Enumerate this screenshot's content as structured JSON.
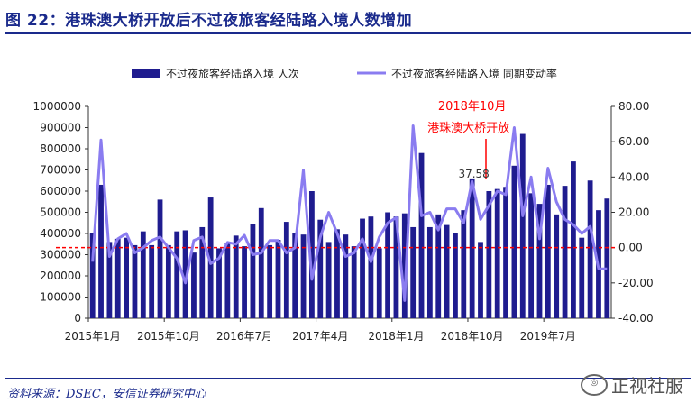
{
  "figure": {
    "title": "图 22：港珠澳大桥开放后不过夜旅客经陆路入境人数增加",
    "source": "资料来源：DSEC，安信证券研究中心",
    "watermark": "正视社服"
  },
  "colors": {
    "bar": "#1f1c8f",
    "line": "#8a7cf0",
    "refline": "#ff0000",
    "title": "#1a2a8c"
  },
  "chart_data": {
    "type": "bar",
    "x_tick_labels": [
      "2015年1月",
      "2015年10月",
      "2016年7月",
      "2017年4月",
      "2018年1月",
      "2018年10月",
      "2019年7月"
    ],
    "x_tick_index": [
      0,
      9,
      18,
      27,
      36,
      45,
      54
    ],
    "legend": {
      "bar": "不过夜旅客经陆路入境 人次",
      "line": "不过夜旅客经陆路入境 同期变动率",
      "position": "top"
    },
    "y_left": {
      "ylim": [
        0,
        1000000
      ],
      "ticks": [
        "0",
        "100000",
        "200000",
        "300000",
        "400000",
        "500000",
        "600000",
        "700000",
        "800000",
        "900000",
        "1000000"
      ]
    },
    "y_right": {
      "ylim": [
        -40,
        80
      ],
      "ticks": [
        "-40.00",
        "-20.00",
        "0.00",
        "20.00",
        "40.00",
        "60.00",
        "80.00"
      ]
    },
    "series": [
      {
        "name": "不过夜旅客经陆路入境 人次",
        "kind": "bar",
        "values": [
          400000,
          630000,
          360000,
          375000,
          380000,
          345000,
          410000,
          345000,
          560000,
          345000,
          410000,
          415000,
          310000,
          430000,
          570000,
          330000,
          355000,
          390000,
          340000,
          445000,
          520000,
          345000,
          370000,
          455000,
          400000,
          395000,
          600000,
          465000,
          360000,
          420000,
          395000,
          340000,
          470000,
          480000,
          330000,
          500000,
          480000,
          495000,
          430000,
          780000,
          430000,
          490000,
          440000,
          400000,
          510000,
          660000,
          360000,
          600000,
          610000,
          620000,
          720000,
          870000,
          590000,
          540000,
          630000,
          490000,
          625000,
          740000,
          380000,
          650000,
          510000,
          565000
        ]
      },
      {
        "name": "不过夜旅客经陆路入境 同期变动率",
        "kind": "line",
        "values": [
          -8,
          61,
          -5,
          5,
          8,
          -3,
          0,
          4,
          6,
          0,
          -6,
          -20,
          4,
          6,
          -9,
          -6,
          3,
          2,
          7,
          -4,
          -3,
          4,
          4,
          -3,
          0,
          44,
          -18,
          6,
          20,
          8,
          -5,
          -3,
          5,
          -8,
          6,
          14,
          17,
          -30,
          69,
          18,
          20,
          10,
          22,
          22,
          14,
          37.58,
          16,
          24,
          32,
          30,
          68,
          18,
          40,
          5,
          45,
          26,
          16,
          13,
          8,
          12,
          -12,
          -12
        ]
      }
    ],
    "annotations": [
      {
        "text": "2018年10月",
        "color": "#ff0000"
      },
      {
        "text": "港珠澳大桥开放",
        "color": "#ff0000"
      },
      {
        "text": "37.58",
        "color": "#333333"
      }
    ],
    "reference_line": {
      "y_right": 0,
      "style": "dashed",
      "color": "#ff0000"
    },
    "grid": false
  }
}
